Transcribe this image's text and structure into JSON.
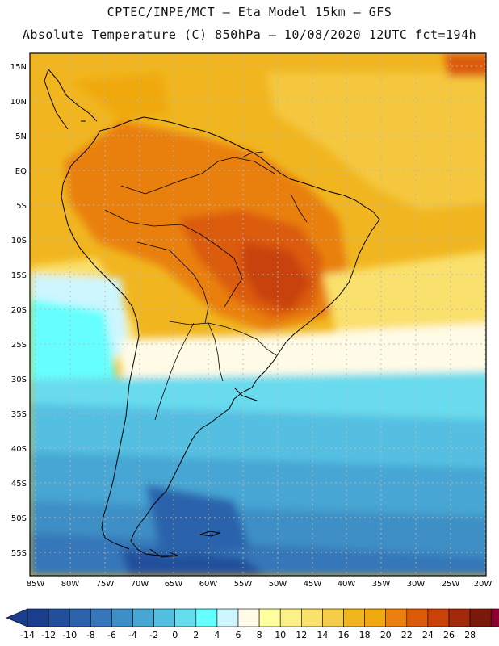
{
  "header": {
    "line1": "CPTEC/INPE/MCT –  Eta Model 15km – GFS",
    "line2": "Absolute Temperature (C) 850hPa – 10/08/2020 12UTC fct=194h"
  },
  "map": {
    "longitude_labels": [
      "85W",
      "80W",
      "75W",
      "70W",
      "65W",
      "60W",
      "55W",
      "50W",
      "45W",
      "40W",
      "35W",
      "30W",
      "25W",
      "20W"
    ],
    "latitude_labels": [
      "15N",
      "10N",
      "5N",
      "EQ",
      "5S",
      "10S",
      "15S",
      "20S",
      "25S",
      "30S",
      "35S",
      "40S",
      "45S",
      "50S",
      "55S"
    ]
  },
  "colorbar": {
    "labels": [
      "-14",
      "-12",
      "-10",
      "-8",
      "-6",
      "-4",
      "-2",
      "0",
      "2",
      "4",
      "6",
      "8",
      "10",
      "12",
      "14",
      "16",
      "18",
      "20",
      "22",
      "24",
      "26",
      "28"
    ],
    "colors": [
      "#1b3e8c",
      "#23509c",
      "#2c63ac",
      "#3577b8",
      "#3d8fc5",
      "#47a6d3",
      "#55bfe2",
      "#67dcee",
      "#66ffff",
      "#cdf6ff",
      "#fffbe6",
      "#ffff9e",
      "#fbf08a",
      "#fae06c",
      "#f6cd4b",
      "#f1b61f",
      "#f0a911",
      "#e98010",
      "#db5b0a",
      "#c8420a",
      "#a02a0a",
      "#7a1a0a",
      "#8b0030",
      "#6a002a"
    ]
  },
  "colors": {
    "frame": "#000000",
    "grid": "#b8b8b8",
    "coast": "#000000"
  }
}
